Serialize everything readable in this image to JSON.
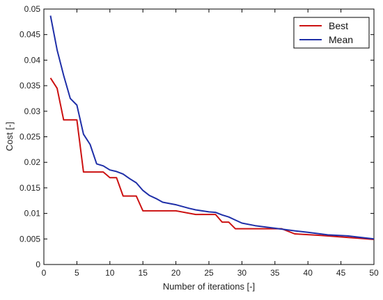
{
  "chart_data": {
    "type": "line",
    "xlabel": "Number of iterations [-]",
    "ylabel": "Cost [-]",
    "xlim": [
      0,
      50
    ],
    "ylim": [
      0,
      0.05
    ],
    "xticks": [
      0,
      5,
      10,
      15,
      20,
      25,
      30,
      35,
      40,
      45,
      50
    ],
    "xtick_labels": [
      "0",
      "5",
      "10",
      "15",
      "20",
      "25",
      "30",
      "35",
      "40",
      "45",
      "50"
    ],
    "yticks": [
      0,
      0.005,
      0.01,
      0.015,
      0.02,
      0.025,
      0.03,
      0.035,
      0.04,
      0.045,
      0.05
    ],
    "ytick_labels": [
      "0",
      "0.005",
      "0.01",
      "0.015",
      "0.02",
      "0.025",
      "0.03",
      "0.035",
      "0.04",
      "0.045",
      "0.05"
    ],
    "grid": false,
    "legend_position": "top-right",
    "series": [
      {
        "name": "Best",
        "color": "#cc1111",
        "points": [
          [
            1,
            0.0365
          ],
          [
            2,
            0.0345
          ],
          [
            3,
            0.0283
          ],
          [
            4,
            0.0283
          ],
          [
            5,
            0.0283
          ],
          [
            6,
            0.0181
          ],
          [
            7,
            0.0181
          ],
          [
            8,
            0.0181
          ],
          [
            9,
            0.0181
          ],
          [
            10,
            0.017
          ],
          [
            11,
            0.017
          ],
          [
            12,
            0.0134
          ],
          [
            13,
            0.0134
          ],
          [
            14,
            0.0134
          ],
          [
            15,
            0.0105
          ],
          [
            20,
            0.0105
          ],
          [
            23,
            0.0098
          ],
          [
            26,
            0.0098
          ],
          [
            27,
            0.0083
          ],
          [
            28,
            0.0083
          ],
          [
            29,
            0.007
          ],
          [
            30,
            0.007
          ],
          [
            36,
            0.007
          ],
          [
            38,
            0.006
          ],
          [
            42,
            0.0057
          ],
          [
            46,
            0.0053
          ],
          [
            50,
            0.0049
          ]
        ]
      },
      {
        "name": "Mean",
        "color": "#1f2fa8",
        "points": [
          [
            1,
            0.0487
          ],
          [
            2,
            0.042
          ],
          [
            3,
            0.037
          ],
          [
            4,
            0.0325
          ],
          [
            5,
            0.0312
          ],
          [
            6,
            0.0255
          ],
          [
            7,
            0.0235
          ],
          [
            8,
            0.0197
          ],
          [
            9,
            0.0193
          ],
          [
            10,
            0.0185
          ],
          [
            11,
            0.0182
          ],
          [
            12,
            0.0177
          ],
          [
            13,
            0.0168
          ],
          [
            14,
            0.016
          ],
          [
            15,
            0.0145
          ],
          [
            16,
            0.0135
          ],
          [
            17,
            0.0129
          ],
          [
            18,
            0.0122
          ],
          [
            20,
            0.0117
          ],
          [
            22,
            0.011
          ],
          [
            23,
            0.0107
          ],
          [
            25,
            0.0103
          ],
          [
            26,
            0.0102
          ],
          [
            27,
            0.0097
          ],
          [
            28,
            0.0093
          ],
          [
            29,
            0.0087
          ],
          [
            30,
            0.0081
          ],
          [
            32,
            0.0076
          ],
          [
            35,
            0.0071
          ],
          [
            38,
            0.0066
          ],
          [
            40,
            0.0063
          ],
          [
            43,
            0.0058
          ],
          [
            46,
            0.0056
          ],
          [
            50,
            0.005
          ]
        ]
      }
    ]
  }
}
